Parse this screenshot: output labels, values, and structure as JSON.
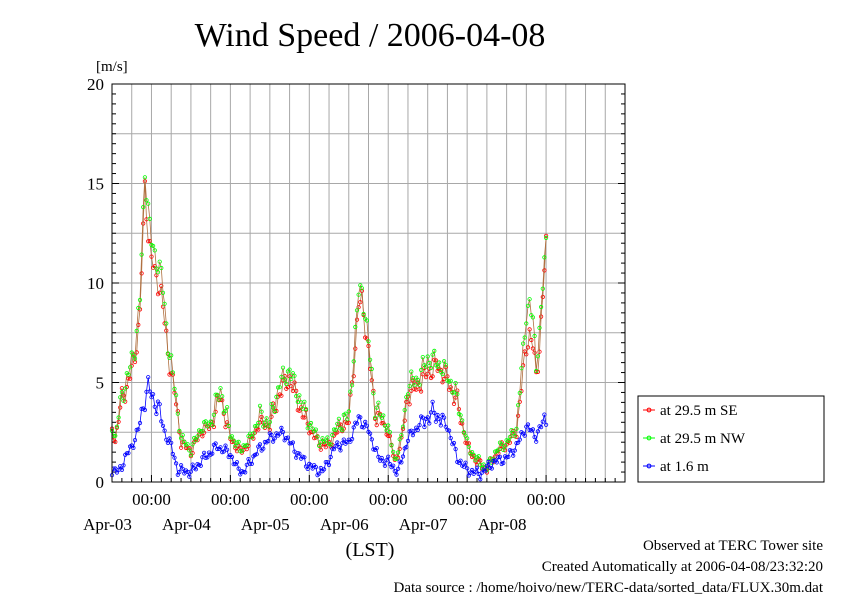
{
  "chart_data": {
    "type": "line",
    "title": "Wind Speed / 2006-04-08",
    "ylabel": "[m/s]",
    "xlabel": "(LST)",
    "ylim": [
      0,
      20
    ],
    "yticks": [
      0,
      5,
      10,
      15,
      20
    ],
    "xlim": [
      "2006-04-02 12:00",
      "2006-04-08 24:00"
    ],
    "time_tick_label": "00:00",
    "date_labels": [
      "Apr-03",
      "Apr-04",
      "Apr-05",
      "Apr-06",
      "Apr-07",
      "Apr-08"
    ],
    "grid": true,
    "legend": "right",
    "series": [
      {
        "name": "at 29.5 m SE",
        "color": "#ff0000",
        "keypoints": [
          [
            "2006-04-02 12:00",
            2.6
          ],
          [
            "2006-04-02 13:00",
            2.1
          ],
          [
            "2006-04-02 15:00",
            4.2
          ],
          [
            "2006-04-02 17:00",
            5.0
          ],
          [
            "2006-04-02 19:00",
            6.3
          ],
          [
            "2006-04-02 20:30",
            8.5
          ],
          [
            "2006-04-02 22:00",
            14.8
          ],
          [
            "2006-04-02 23:00",
            12.5
          ],
          [
            "2006-04-03 00:00",
            11.2
          ],
          [
            "2006-04-03 01:00",
            10.5
          ],
          [
            "2006-04-03 03:00",
            9.5
          ],
          [
            "2006-04-03 05:00",
            6.5
          ],
          [
            "2006-04-03 07:00",
            4.5
          ],
          [
            "2006-04-03 09:00",
            2.0
          ],
          [
            "2006-04-03 12:00",
            1.5
          ],
          [
            "2006-04-03 15:00",
            2.5
          ],
          [
            "2006-04-03 18:00",
            2.8
          ],
          [
            "2006-04-03 21:00",
            4.3
          ],
          [
            "2006-04-04 00:00",
            2.2
          ],
          [
            "2006-04-04 03:00",
            1.5
          ],
          [
            "2006-04-04 06:00",
            2.0
          ],
          [
            "2006-04-04 09:00",
            3.0
          ],
          [
            "2006-04-04 12:00",
            2.8
          ],
          [
            "2006-04-04 15:00",
            4.5
          ],
          [
            "2006-04-04 18:00",
            5.2
          ],
          [
            "2006-04-04 21:00",
            3.8
          ],
          [
            "2006-04-05 00:00",
            2.7
          ],
          [
            "2006-04-05 03:00",
            1.9
          ],
          [
            "2006-04-05 06:00",
            1.8
          ],
          [
            "2006-04-05 09:00",
            2.7
          ],
          [
            "2006-04-05 12:00",
            3.0
          ],
          [
            "2006-04-05 15:00",
            8.8
          ],
          [
            "2006-04-05 16:00",
            9.2
          ],
          [
            "2006-04-05 18:00",
            6.5
          ],
          [
            "2006-04-05 20:00",
            3.5
          ],
          [
            "2006-04-06 00:00",
            2.5
          ],
          [
            "2006-04-06 02:00",
            1.0
          ],
          [
            "2006-04-06 04:00",
            2.0
          ],
          [
            "2006-04-06 06:00",
            4.4
          ],
          [
            "2006-04-06 09:00",
            4.8
          ],
          [
            "2006-04-06 12:00",
            5.5
          ],
          [
            "2006-04-06 15:00",
            5.8
          ],
          [
            "2006-04-06 18:00",
            5.1
          ],
          [
            "2006-04-06 21:00",
            4.0
          ],
          [
            "2006-04-07 00:00",
            1.8
          ],
          [
            "2006-04-07 03:00",
            1.0
          ],
          [
            "2006-04-07 06:00",
            0.6
          ],
          [
            "2006-04-07 09:00",
            1.5
          ],
          [
            "2006-04-07 12:00",
            1.9
          ],
          [
            "2006-04-07 15:00",
            2.5
          ],
          [
            "2006-04-07 17:00",
            5.5
          ],
          [
            "2006-04-07 18:00",
            6.8
          ],
          [
            "2006-04-07 19:00",
            7.5
          ],
          [
            "2006-04-07 20:00",
            6.8
          ],
          [
            "2006-04-07 21:00",
            5.3
          ],
          [
            "2006-04-07 22:00",
            6.8
          ],
          [
            "2006-04-08 00:00",
            11.9
          ]
        ]
      },
      {
        "name": "at 29.5 m NW",
        "color": "#00ff00",
        "keypoints": [
          [
            "2006-04-02 12:00",
            2.8
          ],
          [
            "2006-04-02 13:00",
            2.2
          ],
          [
            "2006-04-02 15:00",
            4.4
          ],
          [
            "2006-04-02 17:00",
            5.4
          ],
          [
            "2006-04-02 19:00",
            6.8
          ],
          [
            "2006-04-02 20:30",
            9.2
          ],
          [
            "2006-04-02 22:00",
            15.6
          ],
          [
            "2006-04-02 23:00",
            13.8
          ],
          [
            "2006-04-03 00:00",
            12.0
          ],
          [
            "2006-04-03 01:00",
            11.4
          ],
          [
            "2006-04-03 03:00",
            10.5
          ],
          [
            "2006-04-03 05:00",
            7.0
          ],
          [
            "2006-04-03 07:00",
            4.8
          ],
          [
            "2006-04-03 09:00",
            2.2
          ],
          [
            "2006-04-03 12:00",
            1.6
          ],
          [
            "2006-04-03 15:00",
            2.7
          ],
          [
            "2006-04-03 18:00",
            3.0
          ],
          [
            "2006-04-03 21:00",
            4.7
          ],
          [
            "2006-04-04 00:00",
            2.4
          ],
          [
            "2006-04-04 03:00",
            1.6
          ],
          [
            "2006-04-04 06:00",
            2.2
          ],
          [
            "2006-04-04 09:00",
            3.3
          ],
          [
            "2006-04-04 12:00",
            3.0
          ],
          [
            "2006-04-04 15:00",
            5.0
          ],
          [
            "2006-04-04 18:00",
            5.6
          ],
          [
            "2006-04-04 21:00",
            4.2
          ],
          [
            "2006-04-05 00:00",
            3.0
          ],
          [
            "2006-04-05 03:00",
            2.1
          ],
          [
            "2006-04-05 06:00",
            2.0
          ],
          [
            "2006-04-05 09:00",
            3.0
          ],
          [
            "2006-04-05 12:00",
            3.3
          ],
          [
            "2006-04-05 15:00",
            9.5
          ],
          [
            "2006-04-05 16:00",
            9.7
          ],
          [
            "2006-04-05 18:00",
            7.0
          ],
          [
            "2006-04-05 20:00",
            3.8
          ],
          [
            "2006-04-06 00:00",
            2.7
          ],
          [
            "2006-04-06 02:00",
            1.1
          ],
          [
            "2006-04-06 04:00",
            2.2
          ],
          [
            "2006-04-06 06:00",
            4.9
          ],
          [
            "2006-04-06 09:00",
            5.2
          ],
          [
            "2006-04-06 12:00",
            6.2
          ],
          [
            "2006-04-06 15:00",
            6.0
          ],
          [
            "2006-04-06 18:00",
            5.4
          ],
          [
            "2006-04-06 21:00",
            4.2
          ],
          [
            "2006-04-07 00:00",
            1.9
          ],
          [
            "2006-04-07 03:00",
            1.1
          ],
          [
            "2006-04-07 06:00",
            0.7
          ],
          [
            "2006-04-07 09:00",
            1.6
          ],
          [
            "2006-04-07 12:00",
            2.0
          ],
          [
            "2006-04-07 15:00",
            2.7
          ],
          [
            "2006-04-07 17:00",
            6.5
          ],
          [
            "2006-04-07 18:00",
            8.5
          ],
          [
            "2006-04-07 19:00",
            9.0
          ],
          [
            "2006-04-07 20:00",
            8.0
          ],
          [
            "2006-04-07 21:00",
            6.0
          ],
          [
            "2006-04-07 22:00",
            7.5
          ],
          [
            "2006-04-08 00:00",
            12.1
          ]
        ]
      },
      {
        "name": "at 1.6 m",
        "color": "#0000ff",
        "keypoints": [
          [
            "2006-04-02 12:00",
            0.6
          ],
          [
            "2006-04-02 14:00",
            0.5
          ],
          [
            "2006-04-02 16:00",
            1.2
          ],
          [
            "2006-04-02 18:00",
            1.8
          ],
          [
            "2006-04-02 20:00",
            2.6
          ],
          [
            "2006-04-02 22:00",
            4.2
          ],
          [
            "2006-04-02 23:00",
            4.8
          ],
          [
            "2006-04-03 00:00",
            4.3
          ],
          [
            "2006-04-03 02:00",
            3.8
          ],
          [
            "2006-04-03 04:00",
            2.5
          ],
          [
            "2006-04-03 06:00",
            1.8
          ],
          [
            "2006-04-03 08:00",
            0.6
          ],
          [
            "2006-04-03 12:00",
            0.5
          ],
          [
            "2006-04-03 16:00",
            1.2
          ],
          [
            "2006-04-03 20:00",
            1.8
          ],
          [
            "2006-04-04 00:00",
            1.4
          ],
          [
            "2006-04-04 02:00",
            0.7
          ],
          [
            "2006-04-04 04:00",
            0.5
          ],
          [
            "2006-04-04 08:00",
            1.5
          ],
          [
            "2006-04-04 12:00",
            2.2
          ],
          [
            "2006-04-04 16:00",
            2.5
          ],
          [
            "2006-04-04 20:00",
            1.5
          ],
          [
            "2006-04-05 00:00",
            0.8
          ],
          [
            "2006-04-05 04:00",
            0.5
          ],
          [
            "2006-04-05 08:00",
            1.8
          ],
          [
            "2006-04-05 12:00",
            2.0
          ],
          [
            "2006-04-05 15:00",
            3.2
          ],
          [
            "2006-04-05 18:00",
            2.6
          ],
          [
            "2006-04-05 21:00",
            1.2
          ],
          [
            "2006-04-06 00:00",
            1.0
          ],
          [
            "2006-04-06 03:00",
            0.5
          ],
          [
            "2006-04-06 06:00",
            2.2
          ],
          [
            "2006-04-06 10:00",
            3.0
          ],
          [
            "2006-04-06 14:00",
            3.5
          ],
          [
            "2006-04-06 18:00",
            2.8
          ],
          [
            "2006-04-06 21:00",
            1.2
          ],
          [
            "2006-04-07 00:00",
            0.6
          ],
          [
            "2006-04-07 04:00",
            0.4
          ],
          [
            "2006-04-07 08:00",
            1.0
          ],
          [
            "2006-04-07 12:00",
            1.2
          ],
          [
            "2006-04-07 15:00",
            1.8
          ],
          [
            "2006-04-07 18:00",
            2.8
          ],
          [
            "2006-04-07 21:00",
            2.3
          ],
          [
            "2006-04-08 00:00",
            3.3
          ]
        ]
      }
    ]
  },
  "footer": {
    "line1": "Observed at TERC Tower site",
    "line2": "Created Automatically at 2006-04-08/23:32:20",
    "line3": "Data source : /home/hoivo/new/TERC-data/sorted_data/FLUX.30m.dat"
  }
}
